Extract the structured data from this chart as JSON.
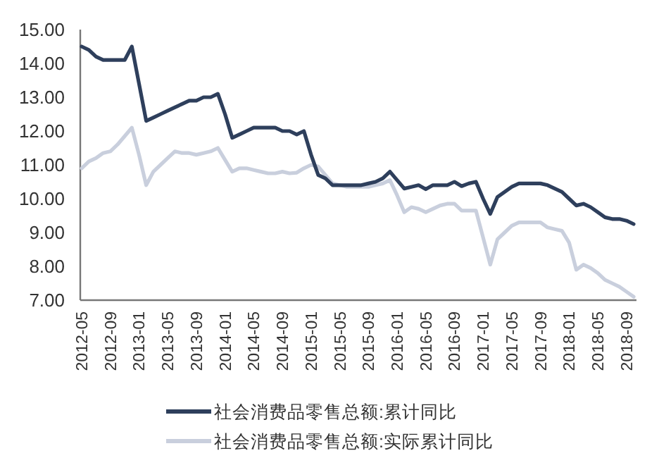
{
  "chart_data": {
    "type": "line",
    "categories": [
      "2012-05",
      null,
      null,
      null,
      "2012-09",
      null,
      null,
      null,
      "2013-01",
      null,
      null,
      null,
      "2013-05",
      null,
      null,
      null,
      "2013-09",
      null,
      null,
      null,
      "2014-01",
      null,
      null,
      null,
      "2014-05",
      null,
      null,
      null,
      "2014-09",
      null,
      null,
      null,
      "2015-01",
      null,
      null,
      null,
      "2015-05",
      null,
      null,
      null,
      "2015-09",
      null,
      null,
      null,
      "2016-01",
      null,
      null,
      null,
      "2016-05",
      null,
      null,
      null,
      "2016-09",
      null,
      null,
      null,
      "2017-01",
      null,
      null,
      null,
      "2017-05",
      null,
      null,
      null,
      "2017-09",
      null,
      null,
      null,
      "2018-01",
      null,
      null,
      null,
      "2018-05",
      null,
      null,
      null,
      "2018-09",
      null
    ],
    "series": [
      {
        "name": "社会消费品零售总额:累计同比",
        "color": "#2e3f5c",
        "values": [
          14.5,
          14.4,
          14.2,
          14.1,
          14.1,
          14.1,
          14.1,
          14.5,
          13.4,
          12.3,
          12.4,
          12.5,
          12.6,
          12.7,
          12.8,
          12.9,
          12.9,
          13.0,
          13.0,
          13.1,
          12.5,
          11.8,
          11.9,
          12.0,
          12.1,
          12.1,
          12.1,
          12.1,
          12.0,
          12.0,
          11.9,
          12.0,
          11.3,
          10.7,
          10.6,
          10.4,
          10.4,
          10.4,
          10.4,
          10.4,
          10.45,
          10.5,
          10.6,
          10.8,
          10.55,
          10.3,
          10.35,
          10.4,
          10.28,
          10.4,
          10.4,
          10.4,
          10.5,
          10.37,
          10.45,
          10.5,
          10.0,
          9.55,
          10.05,
          10.2,
          10.35,
          10.45,
          10.45,
          10.45,
          10.45,
          10.4,
          10.3,
          10.2,
          10.0,
          9.8,
          9.85,
          9.75,
          9.6,
          9.45,
          9.4,
          9.4,
          9.35,
          9.25
        ]
      },
      {
        "name": "社会消费品零售总额:实际累计同比",
        "color": "#c9cfdd",
        "values": [
          10.9,
          11.1,
          11.2,
          11.35,
          11.4,
          11.6,
          11.85,
          12.1,
          11.3,
          10.4,
          10.8,
          11.0,
          11.2,
          11.4,
          11.35,
          11.35,
          11.3,
          11.35,
          11.4,
          11.5,
          11.15,
          10.8,
          10.9,
          10.9,
          10.85,
          10.8,
          10.75,
          10.75,
          10.8,
          10.75,
          10.77,
          10.9,
          11.0,
          10.95,
          10.7,
          10.45,
          10.4,
          10.35,
          10.35,
          10.35,
          10.35,
          10.4,
          10.45,
          10.55,
          10.1,
          9.6,
          9.75,
          9.7,
          9.6,
          9.7,
          9.8,
          9.85,
          9.85,
          9.65,
          9.65,
          9.65,
          8.85,
          8.05,
          8.8,
          9.0,
          9.2,
          9.3,
          9.3,
          9.3,
          9.3,
          9.15,
          9.1,
          9.05,
          8.7,
          7.9,
          8.05,
          7.95,
          7.8,
          7.6,
          7.5,
          7.4,
          7.25,
          7.1
        ]
      }
    ],
    "ylim": [
      7,
      15
    ],
    "yticks": [
      {
        "value": 7,
        "label": "7.00"
      },
      {
        "value": 8,
        "label": "8.00"
      },
      {
        "value": 9,
        "label": "9.00"
      },
      {
        "value": 10,
        "label": "10.00"
      },
      {
        "value": 11,
        "label": "11.00"
      },
      {
        "value": 12,
        "label": "12.00"
      },
      {
        "value": 13,
        "label": "13.00"
      },
      {
        "value": 14,
        "label": "14.00"
      },
      {
        "value": 15,
        "label": "15.00"
      }
    ],
    "grid": false,
    "legend": "bottom",
    "marker": "none",
    "line_style": "solid"
  }
}
